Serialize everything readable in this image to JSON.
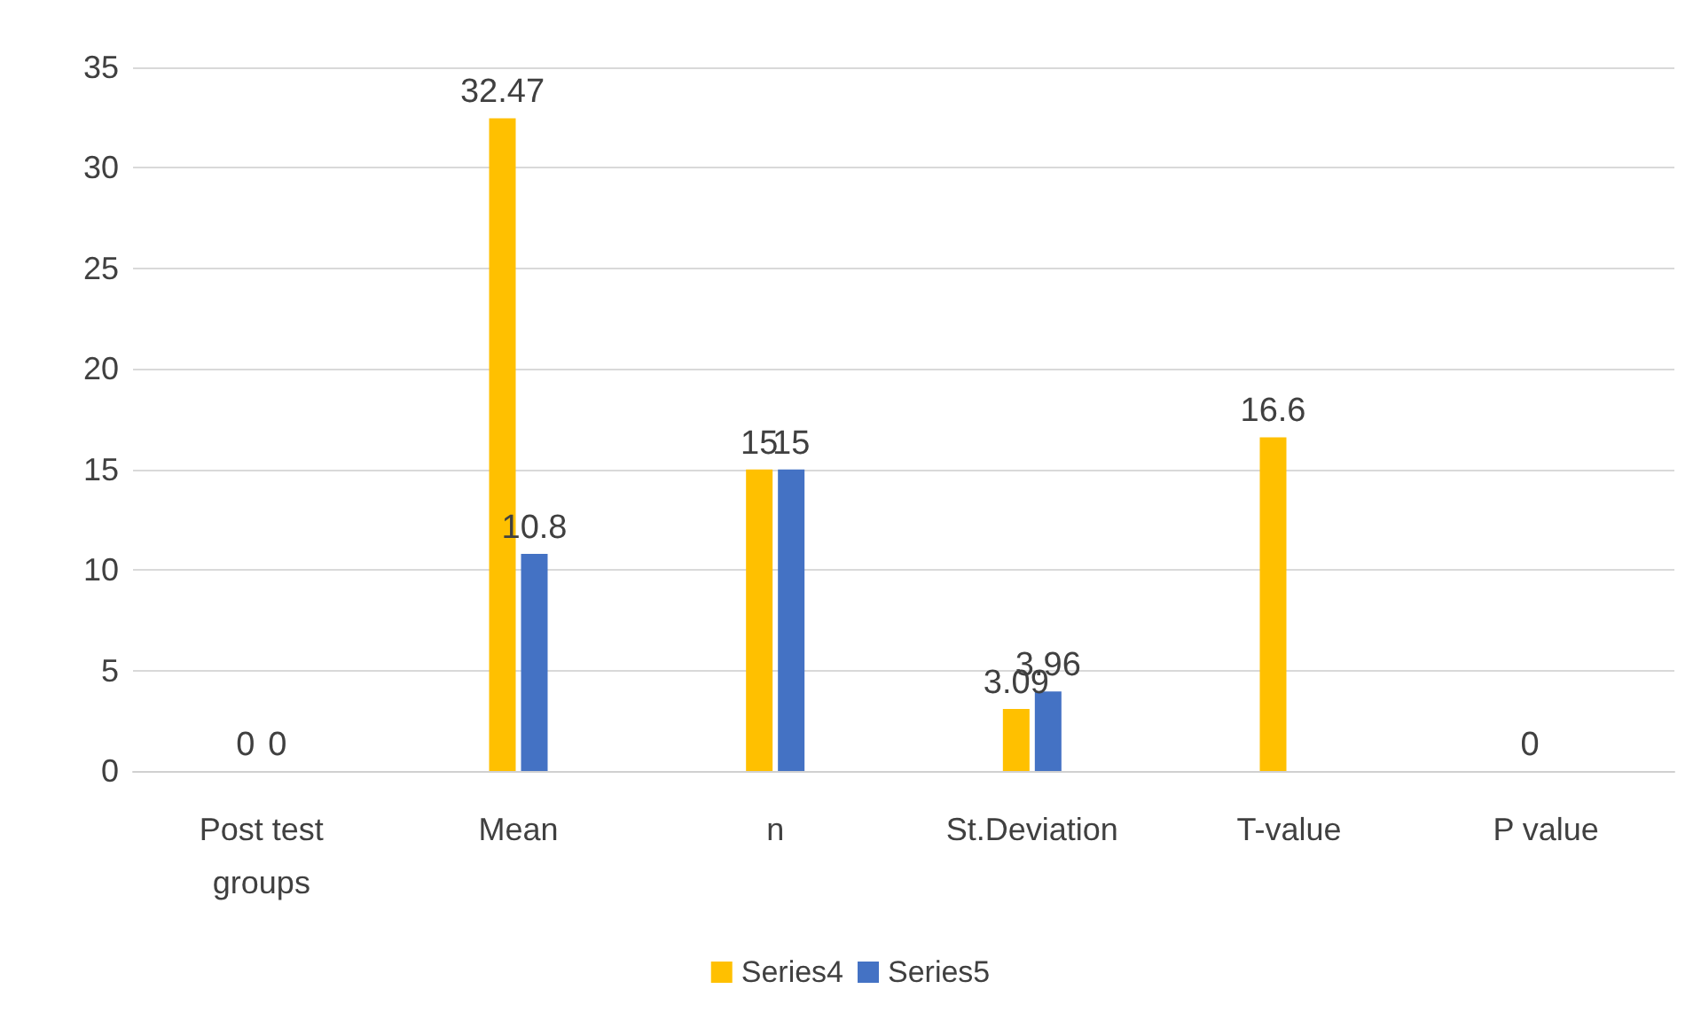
{
  "chart_data": {
    "type": "bar",
    "categories": [
      "Post test groups",
      "Mean",
      "n",
      "St.Deviation",
      "T-value",
      "P value"
    ],
    "series": [
      {
        "name": "Series4",
        "color": "#ffc000",
        "values": [
          0,
          32.47,
          15,
          3.09,
          16.6,
          0
        ]
      },
      {
        "name": "Series5",
        "color": "#4472c4",
        "values": [
          0,
          10.8,
          15,
          3.96,
          null,
          null
        ]
      }
    ],
    "ylim": [
      0,
      35
    ],
    "yticks": [
      0,
      5,
      10,
      15,
      20,
      25,
      30,
      35
    ],
    "grid": "y",
    "legend": "bottom",
    "data_labels": true
  }
}
